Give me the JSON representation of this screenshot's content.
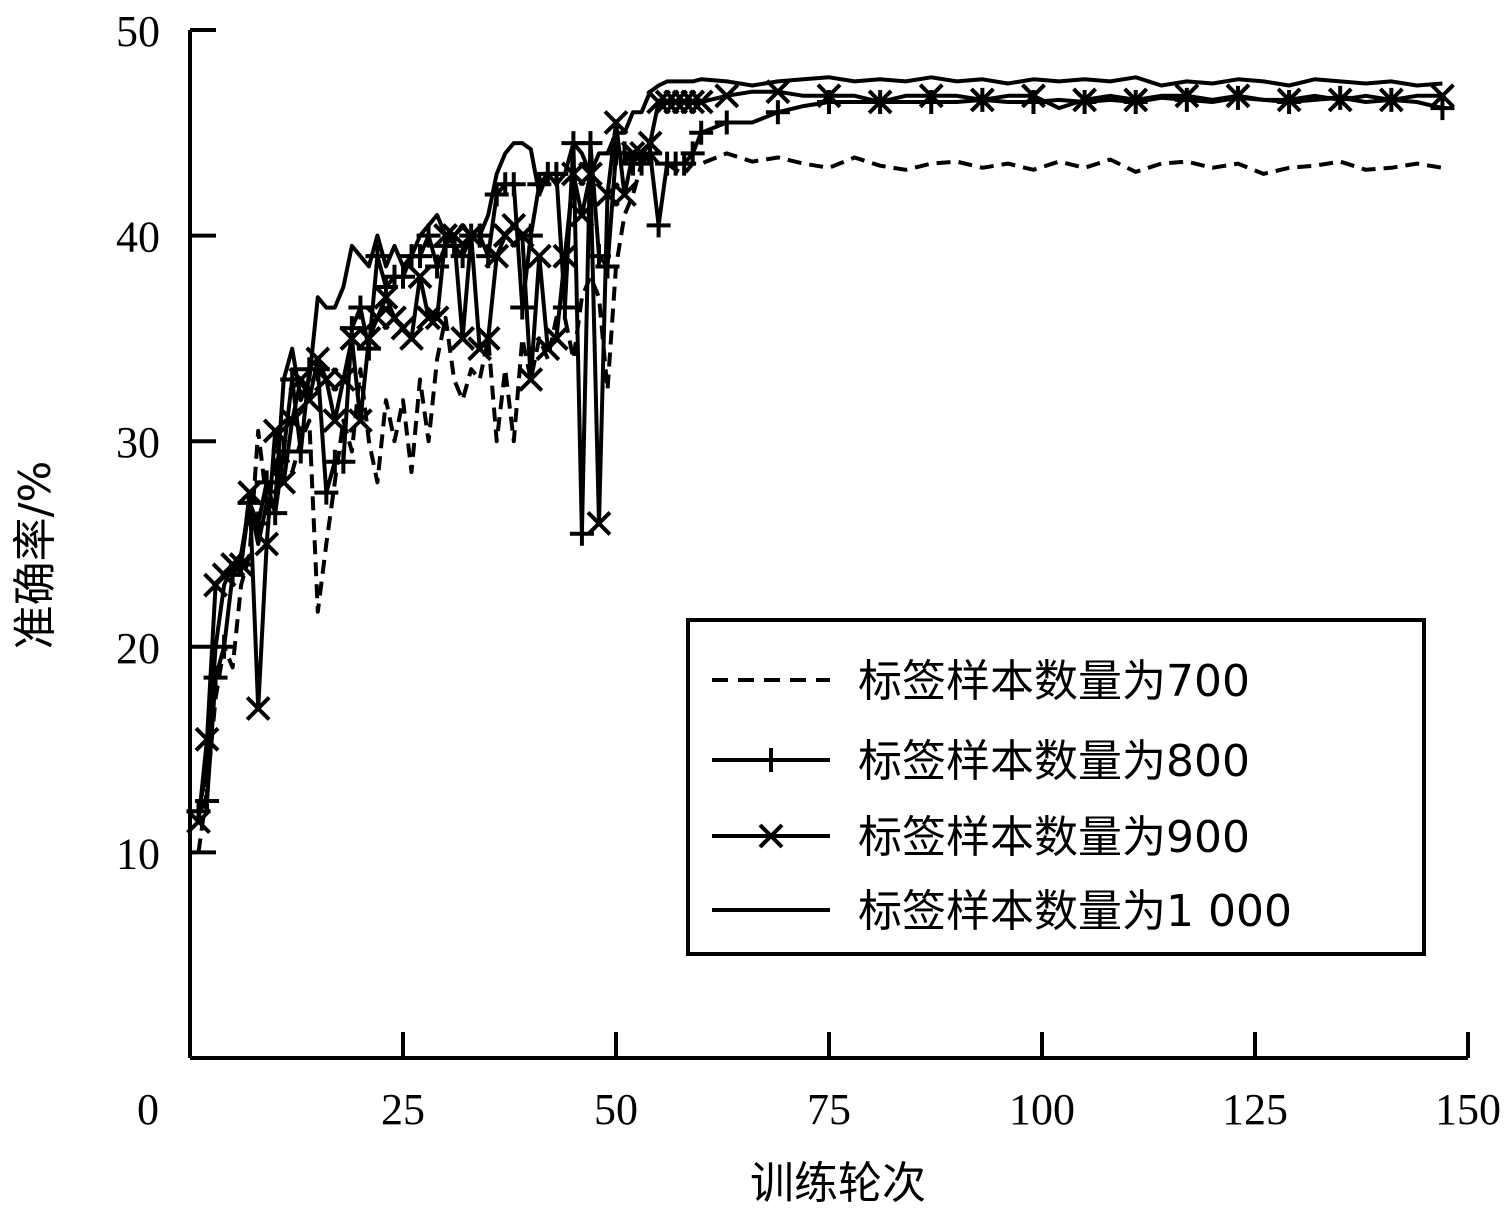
{
  "chart_data": {
    "type": "line",
    "title": "",
    "xlabel": "训练轮次",
    "ylabel": "准确率/%",
    "xlim": [
      0,
      150
    ],
    "ylim": [
      0,
      50
    ],
    "xticks": [
      0,
      25,
      50,
      75,
      100,
      125,
      150
    ],
    "xtick_labels": [
      "0",
      "25",
      "50",
      "75",
      "100",
      "125",
      "150"
    ],
    "yticks": [
      10,
      20,
      30,
      40,
      50
    ],
    "ytick_labels": [
      "10",
      "20",
      "30",
      "40",
      "50"
    ],
    "grid": false,
    "legend_position": "bottom-right",
    "series": [
      {
        "name": "标签样本数量为700",
        "style": "dashed",
        "marker": "none",
        "color": "#000000",
        "x": [
          1,
          2,
          3,
          4,
          5,
          6,
          7,
          8,
          9,
          10,
          11,
          12,
          13,
          14,
          15,
          16,
          17,
          18,
          19,
          20,
          21,
          22,
          23,
          24,
          25,
          26,
          27,
          28,
          29,
          30,
          31,
          32,
          33,
          34,
          35,
          36,
          37,
          38,
          39,
          40,
          41,
          42,
          43,
          44,
          45,
          46,
          47,
          48,
          49,
          50,
          51,
          52,
          53,
          54,
          55,
          56,
          57,
          58,
          59,
          60,
          63,
          66,
          69,
          72,
          75,
          78,
          81,
          84,
          87,
          90,
          93,
          96,
          99,
          102,
          105,
          108,
          111,
          114,
          117,
          120,
          123,
          126,
          129,
          132,
          135,
          138,
          141,
          144,
          147
        ],
        "y": [
          10,
          13,
          17.5,
          20,
          19,
          23,
          24.5,
          30.5,
          27,
          29,
          29.5,
          28.5,
          30,
          31,
          21.7,
          25,
          28,
          31,
          29.5,
          33.5,
          30,
          28,
          32,
          30,
          32,
          28.5,
          33,
          30,
          34,
          36,
          33,
          32,
          33.5,
          33,
          35,
          30,
          33.5,
          30,
          35,
          33,
          35,
          34,
          36,
          36,
          34,
          37,
          38,
          37,
          32.5,
          38.5,
          41,
          42,
          43.5,
          44,
          43.5,
          43.5,
          43.2,
          43,
          43.5,
          43.5,
          44,
          43.6,
          43.8,
          43.5,
          43.3,
          43.8,
          43.4,
          43.2,
          43.5,
          43.6,
          43.3,
          43.5,
          43.2,
          43.6,
          43.3,
          43.7,
          43.1,
          43.5,
          43.6,
          43.3,
          43.5,
          43,
          43.3,
          43.4,
          43.6,
          43.2,
          43.3,
          43.5,
          43.3
        ]
      },
      {
        "name": "标签样本数量为800",
        "style": "solid",
        "marker": "plus",
        "color": "#000000",
        "x": [
          1,
          2,
          3,
          4,
          5,
          6,
          7,
          8,
          9,
          10,
          11,
          12,
          13,
          14,
          15,
          16,
          17,
          18,
          19,
          20,
          21,
          22,
          23,
          24,
          25,
          26,
          27,
          28,
          29,
          30,
          31,
          32,
          33,
          34,
          35,
          36,
          37,
          38,
          39,
          40,
          41,
          42,
          43,
          44,
          45,
          46,
          47,
          48,
          49,
          50,
          51,
          52,
          53,
          54,
          55,
          56,
          57,
          58,
          59,
          60,
          63,
          66,
          69,
          72,
          75,
          78,
          81,
          84,
          87,
          90,
          93,
          96,
          99,
          102,
          105,
          108,
          111,
          114,
          117,
          120,
          123,
          126,
          129,
          132,
          135,
          138,
          141,
          144,
          147
        ],
        "y": [
          12,
          12.5,
          18.5,
          20,
          23.5,
          24,
          27,
          26,
          28,
          26.5,
          29.5,
          33,
          29.5,
          33.5,
          33.5,
          27.5,
          29,
          29,
          35.5,
          36.5,
          34.5,
          39,
          37.5,
          38,
          38,
          39,
          39,
          40,
          38.5,
          39.5,
          39.5,
          39,
          40,
          40,
          39,
          42,
          42.5,
          42.5,
          36.5,
          40,
          42.5,
          43,
          43,
          36.5,
          44.5,
          25.5,
          44.5,
          39,
          38.5,
          44,
          44,
          43.5,
          43.5,
          44,
          40.5,
          43.5,
          43.5,
          43.5,
          44,
          45,
          45.5,
          45.5,
          46,
          46.3,
          46.5,
          46.5,
          46.5,
          46.5,
          46.5,
          46.5,
          46.6,
          46.5,
          46.5,
          46.6,
          46.5,
          46.6,
          46.5,
          46.7,
          46.6,
          46.5,
          46.7,
          46.6,
          46.5,
          46.6,
          46.7,
          46.5,
          46.6,
          46.5,
          46.2
        ]
      },
      {
        "name": "标签样本数量为900",
        "style": "solid",
        "marker": "x",
        "color": "#000000",
        "x": [
          1,
          2,
          3,
          4,
          5,
          6,
          7,
          8,
          9,
          10,
          11,
          12,
          13,
          14,
          15,
          16,
          17,
          18,
          19,
          20,
          21,
          22,
          23,
          24,
          25,
          26,
          27,
          28,
          29,
          30,
          31,
          32,
          33,
          34,
          35,
          36,
          37,
          38,
          39,
          40,
          41,
          42,
          43,
          44,
          45,
          46,
          47,
          48,
          49,
          50,
          51,
          52,
          53,
          54,
          55,
          56,
          57,
          58,
          59,
          60,
          63,
          66,
          69,
          72,
          75,
          78,
          81,
          84,
          87,
          90,
          93,
          96,
          99,
          102,
          105,
          108,
          111,
          114,
          117,
          120,
          123,
          126,
          129,
          132,
          135,
          138,
          141,
          144,
          147
        ],
        "y": [
          11.5,
          15.5,
          23,
          23.5,
          24,
          24,
          27.5,
          17,
          25,
          30.5,
          28,
          31,
          33,
          32,
          34,
          33,
          31,
          33,
          35,
          31,
          35,
          36,
          37,
          36,
          35.5,
          35,
          38,
          36,
          36,
          40,
          40,
          35,
          40,
          34.5,
          35,
          39,
          40,
          40.5,
          40,
          33,
          39,
          34.5,
          35,
          39,
          43,
          41,
          43,
          26,
          42,
          45.5,
          42,
          44,
          44,
          44.5,
          46.5,
          46.5,
          46.5,
          46.5,
          46.5,
          46.5,
          46.8,
          47,
          47,
          46.8,
          46.8,
          46.8,
          46.5,
          46.8,
          46.8,
          46.8,
          46.6,
          46.8,
          46.8,
          46.2,
          46.6,
          46.8,
          46.6,
          46.8,
          46.8,
          46.6,
          46.8,
          46.6,
          46.6,
          46.8,
          46.6,
          46.8,
          46.6,
          46.8,
          46.8
        ]
      },
      {
        "name": "标签样本数量为1 000",
        "style": "solid",
        "marker": "none",
        "color": "#000000",
        "x": [
          1,
          2,
          3,
          4,
          5,
          6,
          7,
          8,
          9,
          10,
          11,
          12,
          13,
          14,
          15,
          16,
          17,
          18,
          19,
          20,
          21,
          22,
          23,
          24,
          25,
          26,
          27,
          28,
          29,
          30,
          31,
          32,
          33,
          34,
          35,
          36,
          37,
          38,
          39,
          40,
          41,
          42,
          43,
          44,
          45,
          46,
          47,
          48,
          49,
          50,
          51,
          52,
          53,
          54,
          55,
          56,
          57,
          58,
          59,
          60,
          63,
          66,
          69,
          72,
          75,
          78,
          81,
          84,
          87,
          90,
          93,
          96,
          99,
          102,
          105,
          108,
          111,
          114,
          117,
          120,
          123,
          126,
          129,
          132,
          135,
          138,
          141,
          144,
          147
        ],
        "y": [
          12,
          14,
          20,
          23,
          24,
          24.5,
          27,
          25,
          27,
          27,
          33,
          34.5,
          32,
          33,
          37,
          36.5,
          36.5,
          37.5,
          39.5,
          39,
          38.5,
          40,
          38.5,
          39.5,
          38.5,
          39,
          40,
          40.5,
          41,
          40,
          40,
          40.5,
          40,
          40,
          41,
          43,
          44,
          44.5,
          44.5,
          44.2,
          42,
          43,
          42.5,
          43,
          44.5,
          44,
          43,
          44,
          44,
          45,
          45,
          46,
          46,
          47,
          47.3,
          47.5,
          47.5,
          47.5,
          47.5,
          47.6,
          47.5,
          47.3,
          47.5,
          47.6,
          47.7,
          47.5,
          47.6,
          47.5,
          47.7,
          47.5,
          47.6,
          47.4,
          47.6,
          47.5,
          47.6,
          47.5,
          47.7,
          47.3,
          47.5,
          47.4,
          47.6,
          47.5,
          47.3,
          47.6,
          47.5,
          47.4,
          47.5,
          47.3,
          47.4
        ]
      }
    ]
  }
}
